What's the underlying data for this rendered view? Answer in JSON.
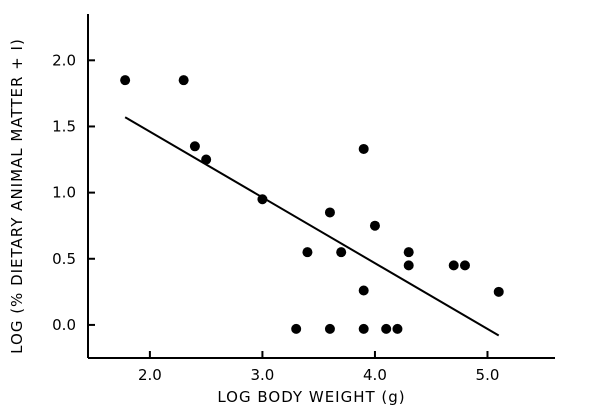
{
  "chart_data": {
    "type": "scatter",
    "title": "",
    "xlabel": "LOG BODY WEIGHT (g)",
    "ylabel": "LOG (% DIETARY ANIMAL MATTER + I)",
    "xlim": [
      1.45,
      5.6
    ],
    "ylim": [
      -0.25,
      2.35
    ],
    "x_ticks": [
      2.0,
      3.0,
      4.0,
      5.0
    ],
    "x_tick_labels": [
      "2.0",
      "3.0",
      "4.0",
      "5.0"
    ],
    "y_ticks": [
      0.0,
      0.5,
      1.0,
      1.5,
      2.0
    ],
    "y_tick_labels": [
      "0.0",
      "0.5",
      "1.0",
      "1.5",
      "2.0"
    ],
    "grid": false,
    "legend": "none",
    "points": [
      {
        "x": 1.78,
        "y": 1.85
      },
      {
        "x": 2.3,
        "y": 1.85
      },
      {
        "x": 2.4,
        "y": 1.35
      },
      {
        "x": 2.5,
        "y": 1.25
      },
      {
        "x": 3.0,
        "y": 0.95
      },
      {
        "x": 3.3,
        "y": -0.03
      },
      {
        "x": 3.4,
        "y": 0.55
      },
      {
        "x": 3.6,
        "y": 0.85
      },
      {
        "x": 3.6,
        "y": -0.03
      },
      {
        "x": 3.7,
        "y": 0.55
      },
      {
        "x": 3.9,
        "y": 1.33
      },
      {
        "x": 3.9,
        "y": 0.26
      },
      {
        "x": 3.9,
        "y": -0.03
      },
      {
        "x": 4.0,
        "y": 0.75
      },
      {
        "x": 4.1,
        "y": -0.03
      },
      {
        "x": 4.2,
        "y": -0.03
      },
      {
        "x": 4.3,
        "y": 0.55
      },
      {
        "x": 4.3,
        "y": 0.45
      },
      {
        "x": 4.7,
        "y": 0.45
      },
      {
        "x": 4.8,
        "y": 0.45
      },
      {
        "x": 5.1,
        "y": 0.25
      }
    ],
    "trend_line": {
      "x": [
        1.78,
        5.1
      ],
      "y": [
        1.57,
        -0.08
      ]
    }
  }
}
